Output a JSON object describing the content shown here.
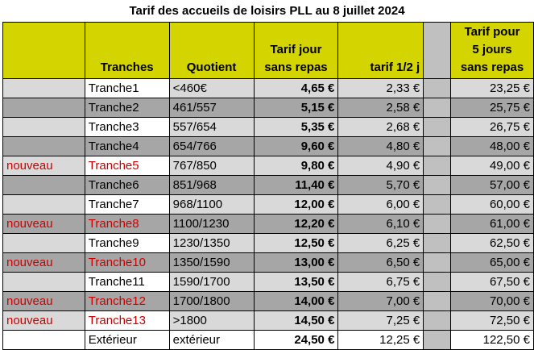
{
  "title": "Tarif des accueils de loisirs PLL au 8 juillet 2024",
  "headers": {
    "tranches": "Tranches",
    "quotient": "Quotient",
    "tarif_jour_l1": "Tarif jour",
    "tarif_jour_l2": "sans repas",
    "tarif_demi": "tarif 1/2 j",
    "tarif_5_l1": "Tarif pour",
    "tarif_5_l2": "5 jours",
    "tarif_5_l3": "sans repas"
  },
  "rows": [
    {
      "note": "",
      "tranche": "Tranche1",
      "quotient": "<460€",
      "jour": "4,65 €",
      "demi": "2,33 €",
      "cinq": "23,25 €",
      "is_new": false
    },
    {
      "note": "",
      "tranche": "Tranche2",
      "quotient": "461/557",
      "jour": "5,15 €",
      "demi": "2,58 €",
      "cinq": "25,75 €",
      "is_new": false
    },
    {
      "note": "",
      "tranche": "Tranche3",
      "quotient": "557/654",
      "jour": "5,35 €",
      "demi": "2,68 €",
      "cinq": "26,75 €",
      "is_new": false
    },
    {
      "note": "",
      "tranche": "Tranche4",
      "quotient": "654/766",
      "jour": "9,60 €",
      "demi": "4,80 €",
      "cinq": "48,00 €",
      "is_new": false
    },
    {
      "note": "nouveau",
      "tranche": "Tranche5",
      "quotient": "767/850",
      "jour": "9,80 €",
      "demi": "4,90 €",
      "cinq": "49,00 €",
      "is_new": true
    },
    {
      "note": "",
      "tranche": "Tranche6",
      "quotient": "851/968",
      "jour": "11,40 €",
      "demi": "5,70 €",
      "cinq": "57,00 €",
      "is_new": false
    },
    {
      "note": "",
      "tranche": "Tranche7",
      "quotient": "968/1100",
      "jour": "12,00 €",
      "demi": "6,00 €",
      "cinq": "60,00 €",
      "is_new": false
    },
    {
      "note": "nouveau",
      "tranche": "Tranche8",
      "quotient": "1100/1230",
      "jour": "12,20 €",
      "demi": "6,10 €",
      "cinq": "61,00 €",
      "is_new": true
    },
    {
      "note": "",
      "tranche": "Tranche9",
      "quotient": "1230/1350",
      "jour": "12,50 €",
      "demi": "6,25 €",
      "cinq": "62,50 €",
      "is_new": false
    },
    {
      "note": "nouveau",
      "tranche": "Tranche10",
      "quotient": "1350/1590",
      "jour": "13,00 €",
      "demi": "6,50 €",
      "cinq": "65,00 €",
      "is_new": true
    },
    {
      "note": "",
      "tranche": "Tranche11",
      "quotient": "1590/1700",
      "jour": "13,50 €",
      "demi": "6,75 €",
      "cinq": "67,50 €",
      "is_new": false
    },
    {
      "note": "nouveau",
      "tranche": "Tranche12",
      "quotient": "1700/1800",
      "jour": "14,00 €",
      "demi": "7,00 €",
      "cinq": "70,00 €",
      "is_new": true
    },
    {
      "note": "nouveau",
      "tranche": "Tranche13",
      "quotient": ">1800",
      "jour": "14,50 €",
      "demi": "7,25 €",
      "cinq": "72,50 €",
      "is_new": true
    },
    {
      "note": "",
      "tranche": "Extérieur",
      "quotient": "extérieur",
      "jour": "24,50 €",
      "demi": "12,25 €",
      "cinq": "122,50 €",
      "is_new": false
    }
  ],
  "colors": {
    "header_bg": "#d4d400",
    "row_light": "#d9d9d9",
    "row_dark": "#a6a6a6",
    "new_text": "#cc0000"
  }
}
